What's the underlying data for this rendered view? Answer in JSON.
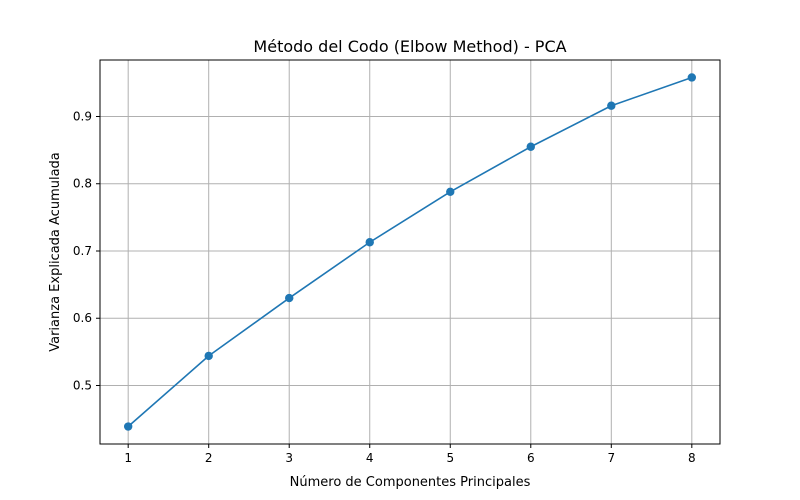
{
  "chart_data": {
    "type": "line",
    "title": "Método del Codo (Elbow Method) - PCA",
    "xlabel": "Número de Componentes Principales",
    "ylabel": "Varianza Explicada Acumulada",
    "x": [
      1,
      2,
      3,
      4,
      5,
      6,
      7,
      8
    ],
    "series": [
      {
        "values": [
          0.439,
          0.544,
          0.63,
          0.713,
          0.788,
          0.855,
          0.916,
          0.958
        ]
      }
    ],
    "xticks": [
      1,
      2,
      3,
      4,
      5,
      6,
      7,
      8
    ],
    "yticks": [
      0.5,
      0.6,
      0.7,
      0.8,
      0.9
    ],
    "xlim": [
      0.65,
      8.35
    ],
    "ylim": [
      0.413,
      0.984
    ],
    "grid": true,
    "marker": "circle",
    "color": "#1f77b4"
  }
}
